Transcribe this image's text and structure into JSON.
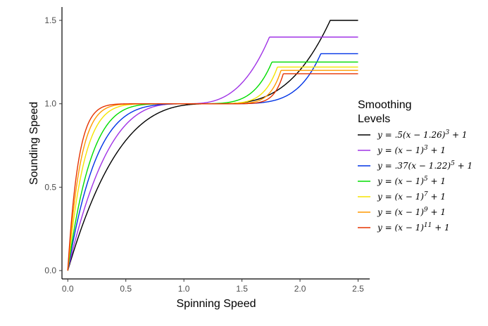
{
  "chart_data": {
    "type": "line",
    "xlabel": "Spinning Speed",
    "ylabel": "Sounding Speed",
    "xlim": [
      -0.05,
      2.6
    ],
    "ylim": [
      -0.05,
      1.58
    ],
    "x_ticks": [
      0.0,
      0.5,
      1.0,
      1.5,
      2.0,
      2.5
    ],
    "x_tick_labels": [
      "0.0",
      "0.5",
      "1.0",
      "1.5",
      "2.0",
      "2.5"
    ],
    "y_ticks": [
      0.0,
      0.5,
      1.0,
      1.5
    ],
    "y_tick_labels": [
      "0.0",
      "0.5",
      "1.0",
      "1.5"
    ],
    "grid": false,
    "legend": {
      "title_lines": [
        "Smoothing",
        "Levels"
      ],
      "placement": "right"
    },
    "series": [
      {
        "color": "#000000",
        "label": {
          "pre": "y = .5(x − 1.26)",
          "sup": "3",
          "post": " + 1"
        },
        "coef": 0.5,
        "shift": 1.26,
        "power": 3,
        "cap": 1.5
      },
      {
        "color": "#a033e6",
        "label": {
          "pre": "y = (x − 1)",
          "sup": "3",
          "post": " + 1"
        },
        "coef": 1,
        "shift": 1,
        "power": 3,
        "cap": 1.4
      },
      {
        "color": "#0033e6",
        "label": {
          "pre": "y = .37(x − 1.22)",
          "sup": "5",
          "post": " + 1"
        },
        "coef": 0.37,
        "shift": 1.22,
        "power": 5,
        "cap": 1.3
      },
      {
        "color": "#00dd00",
        "label": {
          "pre": "y = (x − 1)",
          "sup": "5",
          "post": " + 1"
        },
        "coef": 1,
        "shift": 1,
        "power": 5,
        "cap": 1.25
      },
      {
        "color": "#f5e400",
        "label": {
          "pre": "y = (x − 1)",
          "sup": "7",
          "post": " + 1"
        },
        "coef": 1,
        "shift": 1,
        "power": 7,
        "cap": 1.22
      },
      {
        "color": "#ff9900",
        "label": {
          "pre": "y = (x − 1)",
          "sup": "9",
          "post": " + 1"
        },
        "coef": 1,
        "shift": 1,
        "power": 9,
        "cap": 1.2
      },
      {
        "color": "#e63300",
        "label": {
          "pre": "y = (x − 1)",
          "sup": "11",
          "post": " + 1"
        },
        "coef": 1,
        "shift": 1,
        "power": 11,
        "cap": 1.18
      }
    ]
  }
}
